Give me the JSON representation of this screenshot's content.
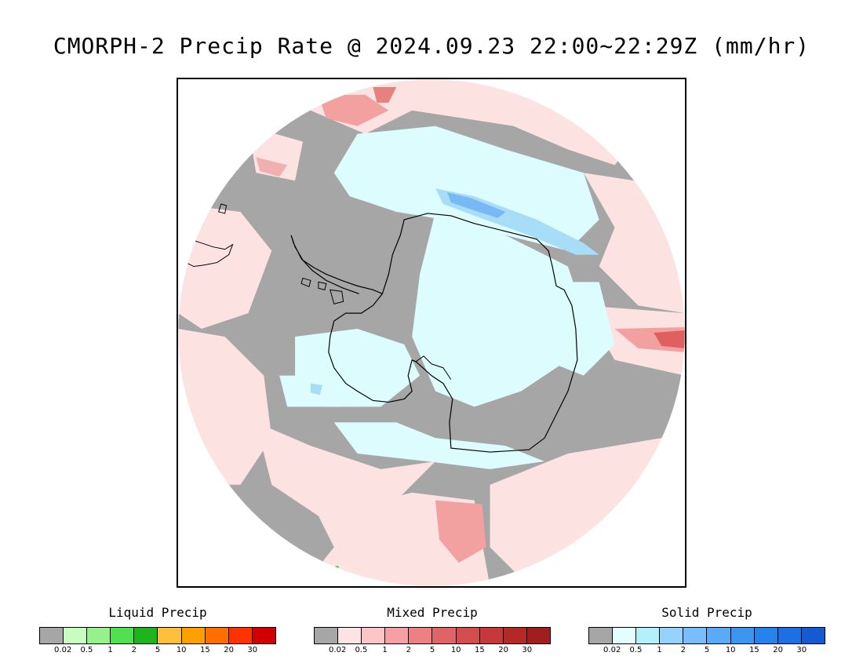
{
  "title": "CMORPH-2 Precip Rate @ 2024.09.23 22:00~22:29Z (mm/hr)",
  "map": {
    "projection": "south-polar-stereographic",
    "region": "Antarctica",
    "colors": {
      "no_precip": "#a6a6a6",
      "mixed_light": "#fde2e2",
      "mixed_moderate": "#f2a0a0",
      "mixed_heavy": "#e06060",
      "solid_light": "#dcfcfe",
      "solid_moderate": "#a8ddf8",
      "solid_heavy": "#78b8f4",
      "liquid_trace": "#5ad45a",
      "coastline": "#000000"
    }
  },
  "legends": [
    {
      "title": "Liquid Precip",
      "colors": [
        "#a6a6a6",
        "#c8fcc0",
        "#96f08c",
        "#50e050",
        "#1eb41e",
        "#ffbe3c",
        "#ffa000",
        "#ff6e00",
        "#ff3200",
        "#d20000"
      ],
      "ticks": [
        "0.02",
        "0.5",
        "1",
        "2",
        "5",
        "10",
        "15",
        "20",
        "30"
      ]
    },
    {
      "title": "Mixed Precip",
      "colors": [
        "#a6a6a6",
        "#fde2e6",
        "#fcc6c8",
        "#f4a0a4",
        "#ec8082",
        "#e06466",
        "#d44c4e",
        "#c8383a",
        "#b42828",
        "#a01e1e"
      ],
      "ticks": [
        "0.02",
        "0.5",
        "1",
        "2",
        "5",
        "10",
        "15",
        "20",
        "30"
      ]
    },
    {
      "title": "Solid Precip",
      "colors": [
        "#a6a6a6",
        "#e2fefe",
        "#b4f0fc",
        "#96d2fa",
        "#78beff",
        "#5aaaf8",
        "#3c96f0",
        "#2882ec",
        "#1e6ee6",
        "#145ad2"
      ],
      "ticks": [
        "0.02",
        "0.5",
        "1",
        "2",
        "5",
        "10",
        "15",
        "20",
        "30"
      ]
    }
  ]
}
